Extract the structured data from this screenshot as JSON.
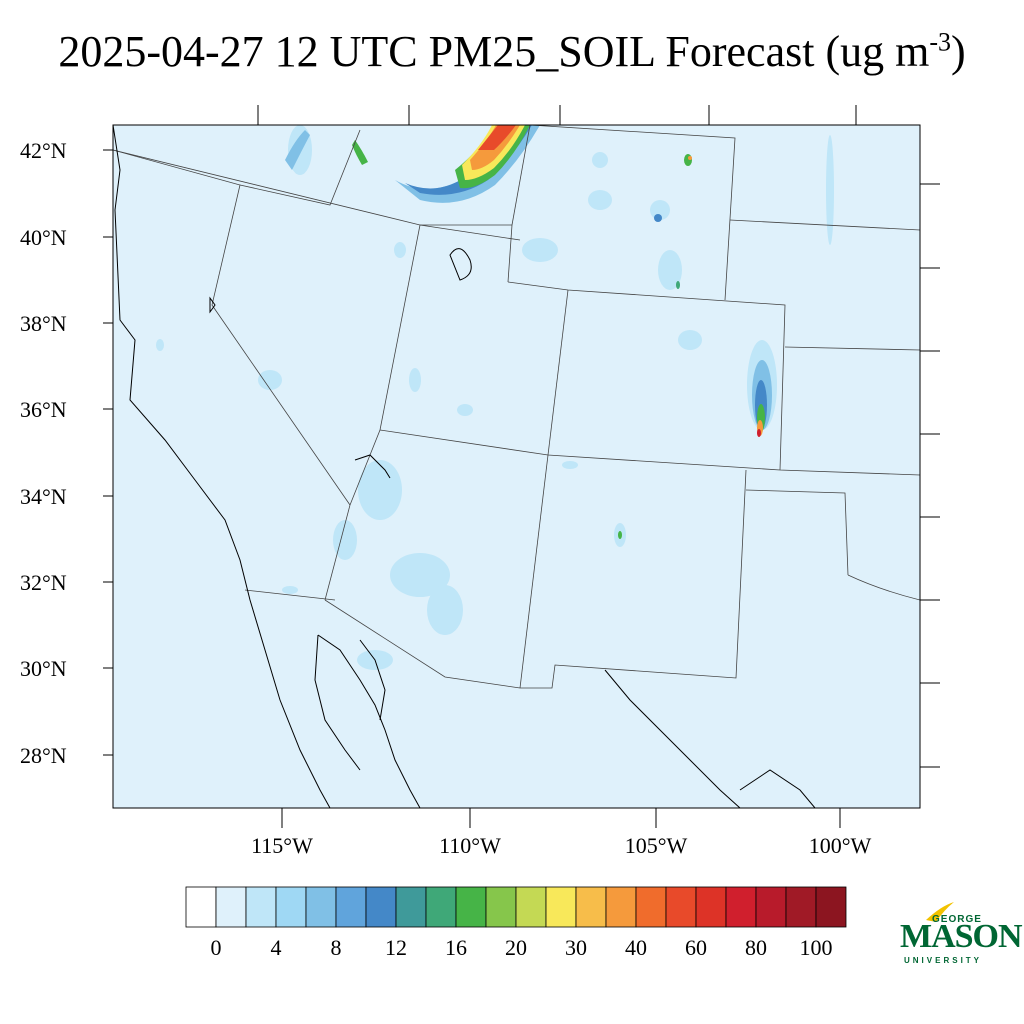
{
  "title": {
    "main": "2025-04-27 12 UTC PM25_SOIL Forecast (ug m",
    "sup": "-3",
    "tail": ")"
  },
  "map": {
    "lat_labels": [
      "42°N",
      "40°N",
      "38°N",
      "36°N",
      "34°N",
      "32°N",
      "30°N",
      "28°N"
    ],
    "lon_labels": [
      "115°W",
      "110°W",
      "105°W",
      "100°W"
    ]
  },
  "colorbar": {
    "labels": [
      "0",
      "4",
      "8",
      "12",
      "16",
      "20",
      "30",
      "40",
      "60",
      "80",
      "100"
    ],
    "colors": [
      "#ffffff",
      "#dff1fb",
      "#bfe6f8",
      "#9fd8f4",
      "#80c0e6",
      "#60a4dc",
      "#4488c8",
      "#3f9a9a",
      "#3fa878",
      "#46b447",
      "#86c64b",
      "#c4d954",
      "#f8e85a",
      "#f7bd4a",
      "#f59a3c",
      "#f06c2c",
      "#e84a2a",
      "#dd3327",
      "#d01f2d",
      "#b81b2b",
      "#a01a26",
      "#8c1520"
    ]
  },
  "logo": {
    "line1": "GEORGE",
    "line2": "MASON",
    "line3": "UNIVERSITY",
    "color": "#006633",
    "accent": "#f2c200"
  },
  "colors": {
    "background_field": "#dff1fb",
    "border_line": "#000000"
  }
}
